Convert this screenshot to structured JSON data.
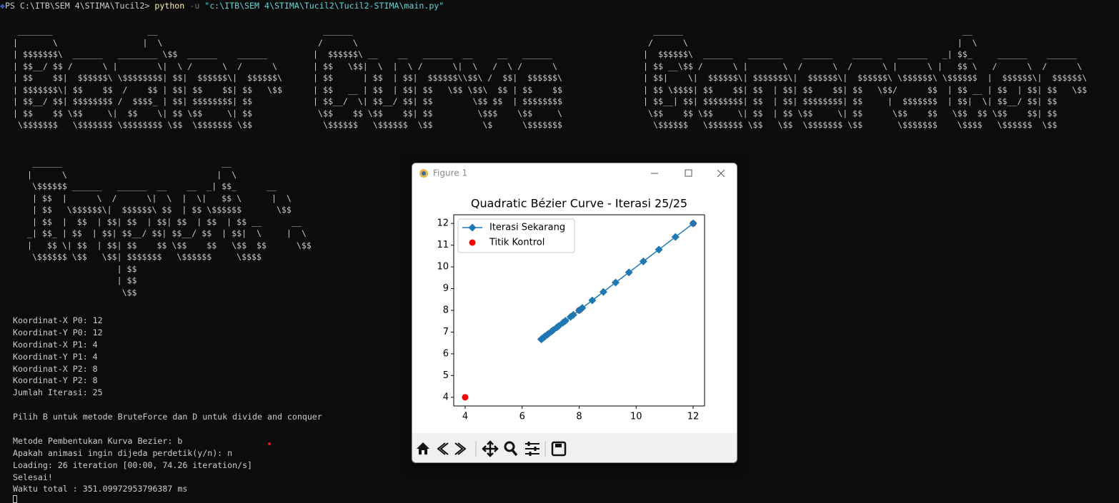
{
  "terminal": {
    "prompt": "PS C:\\ITB\\SEM 4\\STIMA\\Tucil2>",
    "command": "python",
    "flag": "-u",
    "path": "\"c:\\ITB\\SEM 4\\STIMA\\Tucil2\\Tucil2-STIMA\\main.py\"",
    "banner": [
      [
        " _______                   __",
        "|       \\                 |  \\",
        "| $$$$$$$\\  ______   ________ \\$$  ______    ______",
        "| $$__/ $$ /      \\ |        \\|  \\ /      \\  /      \\",
        "| $$    $$|  $$$$$$\\ \\$$$$$$$$| $$|  $$$$$$\\|  $$$$$$\\",
        "| $$$$$$$\\| $$    $$  /    $$ | $$| $$    $$| $$   \\$$",
        "| $$__/ $$| $$$$$$$$ /  $$$$_ | $$| $$$$$$$$| $$",
        "| $$    $$ \\$$     \\|  $$    \\| $$ \\$$     \\| $$",
        " \\$$$$$$$   \\$$$$$$$ \\$$$$$$$$ \\$$  \\$$$$$$$ \\$$"
      ],
      [
        "  ______",
        " /      \\",
        "|  $$$$$$\\ __    __   ______  __     __   ______",
        "| $$   \\$$|  \\  |  \\ /      \\|  \\   /  \\ /      \\",
        "| $$      | $$  | $$|  $$$$$$\\\\$$\\ /  $$|  $$$$$$\\",
        "| $$   __ | $$  | $$| $$   \\$$ \\$$\\  $$ | $$    $$",
        "| $$__/  \\| $$__/ $$| $$        \\$$ $$  | $$$$$$$$",
        " \\$$    $$ \\$$    $$| $$         \\$$$    \\$$     \\",
        "  \\$$$$$$   \\$$$$$$  \\$$          \\$      \\$$$$$$$"
      ],
      [
        "  ______                                                        __",
        " /      \\                                                      |  \\",
        "|  $$$$$$\\  ______   _______    ______    ______   ______   _| $$_     ______    ______",
        "| $$ __\\$$ /      \\ |       \\  /      \\  /      \\ |      \\ |   $$ \\   /      \\  /      \\",
        "| $$|    \\|  $$$$$$\\| $$$$$$$\\|  $$$$$$\\|  $$$$$$\\ \\$$$$$$\\ \\$$$$$$  |  $$$$$$\\|  $$$$$$\\",
        "| $$ \\$$$$| $$    $$| $$  | $$| $$    $$| $$   \\$$/      $$  | $$ __ | $$  | $$| $$   \\$$",
        "| $$__| $$| $$$$$$$$| $$  | $$| $$$$$$$$| $$     |  $$$$$$$  | $$|  \\| $$__/ $$| $$",
        " \\$$    $$ \\$$     \\| $$  | $$ \\$$     \\| $$      \\$$    $$   \\$$  $$ \\$$    $$| $$",
        "  \\$$$$$$   \\$$$$$$$ \\$$   \\$$  \\$$$$$$$ \\$$       \\$$$$$$$    \\$$$$   \\$$$$$$  \\$$"
      ]
    ],
    "input_banner": [
      "   ______                                __",
      "  |      \\                              |  \\",
      "   \\$$$$$$ ______   ______  __    __  _| $$_      __",
      "   | $$  |      \\  /      \\|  \\  |  \\|   $$ \\      |  \\",
      "   | $$   \\$$$$$$\\|  $$$$$$\\ $$  | $$ \\$$$$$$       \\$$",
      "   | $$  |  $$  | $$| $$  | $$| $$  | $$  | $$ __      __",
      "  _| $$_ | $$  | $$| $$__/ $$| $$__/ $$  | $$|  \\     |  \\",
      "  |   $$ \\| $$  | $$| $$    $$ \\$$    $$   \\$$  $$      \\$$",
      "   \\$$$$$$ \\$$   \\$$| $$$$$$$   \\$$$$$$     \\$$$$",
      "                    | $$",
      "                    | $$",
      "                     \\$$"
    ],
    "output": [
      [
        "Koordinat-X P0: 12",
        "Koordinat-Y P0: 12",
        "Koordinat-X P1: 4",
        "Koordinat-Y P1: 4",
        "Koordinat-X P2: 8",
        "Koordinat-Y P2: 8",
        "Jumlah Iterasi: 25"
      ],
      [
        "Pilih B untuk metode BruteForce dan D untuk divide and conquer"
      ],
      [
        "Metode Pembentukan Kurva Bezier: b",
        "Apakah animasi ingin dijeda perdetik(y/n): n",
        "Loading: 26 iteration [00:00, 74.26 iteration/s]",
        "Selesai!",
        "Waktu total : 351.09972953796387 ms"
      ]
    ]
  },
  "window": {
    "title": "Figure 1"
  },
  "chart_data": {
    "type": "line",
    "title": "Quadratic Bézier Curve - Iterasi 25/25",
    "series": [
      {
        "name": "Iterasi Sekarang",
        "type": "line",
        "color": "#1f77b4",
        "marker": "diamond",
        "x": [
          12,
          11.3792,
          10.7968,
          10.2528,
          9.7472,
          9.28,
          8.8512,
          8.4608,
          8.1088,
          7.7952,
          7.52,
          7.2832,
          7.0848,
          6.9248,
          6.8032,
          6.72,
          6.6752,
          6.6688,
          6.7008,
          6.7712,
          6.88,
          7.0272,
          7.2128,
          7.4368,
          7.6992,
          8
        ],
        "values": [
          12,
          11.3792,
          10.7968,
          10.2528,
          9.7472,
          9.28,
          8.8512,
          8.4608,
          8.1088,
          7.7952,
          7.52,
          7.2832,
          7.0848,
          6.9248,
          6.8032,
          6.72,
          6.6752,
          6.6688,
          6.7008,
          6.7712,
          6.88,
          7.0272,
          7.2128,
          7.4368,
          7.6992,
          8
        ]
      },
      {
        "name": "Titik Kontrol",
        "type": "scatter",
        "color": "#ff0000",
        "x": [
          12,
          4,
          8
        ],
        "values": [
          12,
          4,
          8
        ]
      }
    ],
    "xlim": [
      3.6,
      12.4
    ],
    "ylim": [
      3.6,
      12.4
    ],
    "xticks": [
      4,
      6,
      8,
      10,
      12
    ],
    "yticks": [
      4,
      5,
      6,
      7,
      8,
      9,
      10,
      11,
      12
    ],
    "legend": "upper left",
    "grid": false
  }
}
